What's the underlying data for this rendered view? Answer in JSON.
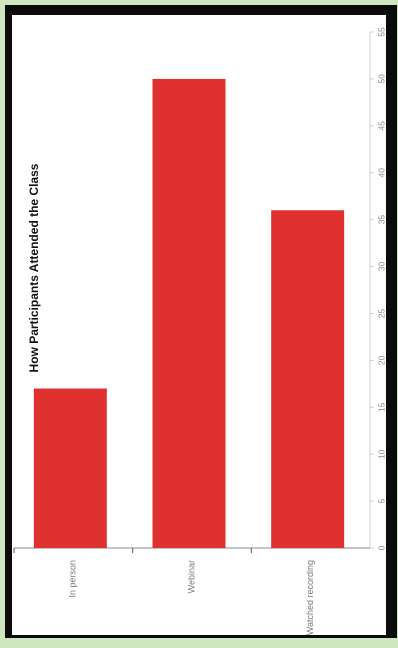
{
  "chart_data": {
    "type": "bar",
    "orientation": "rotated-vertical",
    "title": "How Participants Attended the Class",
    "categories": [
      "In person",
      "Webinar",
      "Watched recording"
    ],
    "values": [
      17,
      50,
      36
    ],
    "ylim": [
      0,
      55
    ],
    "yticks": [
      0,
      5,
      10,
      15,
      20,
      25,
      30,
      35,
      40,
      45,
      50,
      55
    ],
    "bar_color": "#e03131",
    "grid": false
  }
}
